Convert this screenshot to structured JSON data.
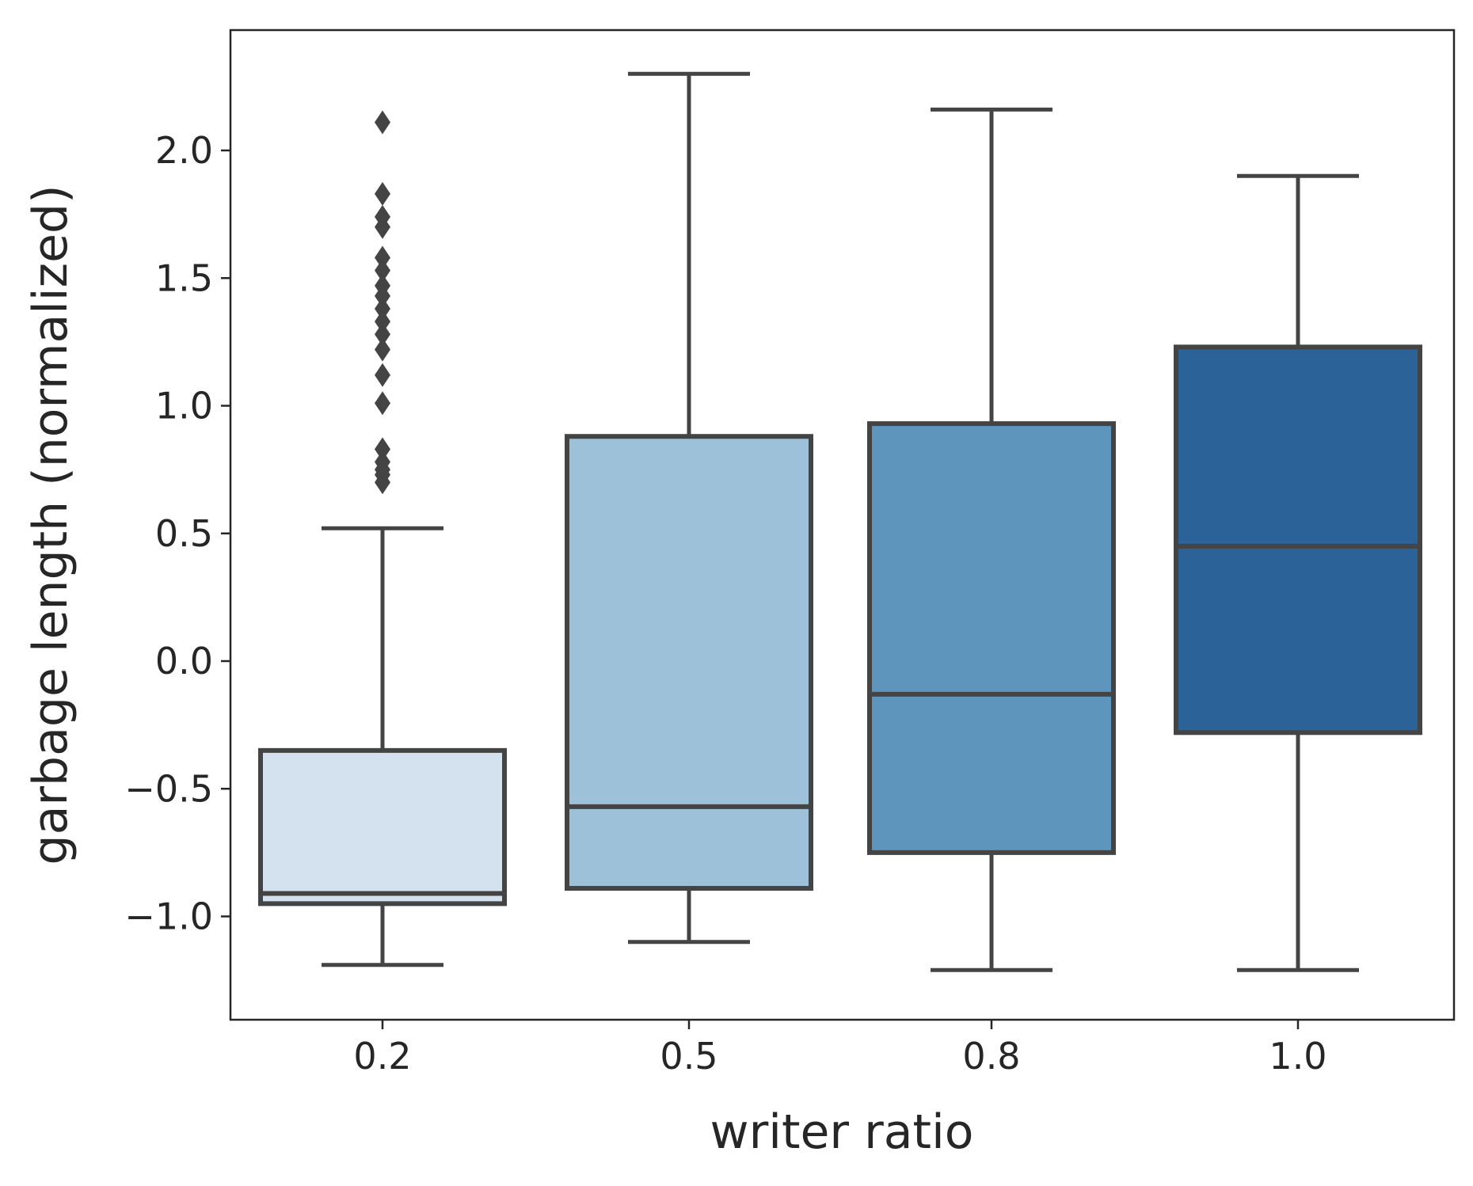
{
  "chart_data": {
    "type": "box",
    "title": "",
    "xlabel": "writer ratio",
    "ylabel": "garbage length (normalized)",
    "categories": [
      "0.2",
      "0.5",
      "0.8",
      "1.0"
    ],
    "ylim": [
      -1.42,
      2.45
    ],
    "yticks": [
      -1.0,
      -0.5,
      0.0,
      0.5,
      1.0,
      1.5,
      2.0
    ],
    "ytick_labels": [
      "−1.0",
      "−0.5",
      "0.0",
      "0.5",
      "1.0",
      "1.5",
      "2.0"
    ],
    "grid": false,
    "boxes": [
      {
        "category": "0.2",
        "whisker_low": -1.19,
        "q1": -0.95,
        "median": -0.91,
        "q3": -0.35,
        "whisker_high": 0.52,
        "color": "#d4e2f0",
        "outliers": [
          0.7,
          0.73,
          0.75,
          0.78,
          0.83,
          1.01,
          1.12,
          1.22,
          1.28,
          1.33,
          1.38,
          1.43,
          1.47,
          1.53,
          1.58,
          1.7,
          1.74,
          1.83,
          2.11
        ]
      },
      {
        "category": "0.5",
        "whisker_low": -1.1,
        "q1": -0.89,
        "median": -0.57,
        "q3": 0.88,
        "whisker_high": 2.3,
        "color": "#9dc1d9",
        "outliers": []
      },
      {
        "category": "0.8",
        "whisker_low": -1.21,
        "q1": -0.75,
        "median": -0.13,
        "q3": 0.93,
        "whisker_high": 2.16,
        "color": "#5d95bc",
        "outliers": []
      },
      {
        "category": "1.0",
        "whisker_low": -1.21,
        "q1": -0.28,
        "median": 0.45,
        "q3": 1.23,
        "whisker_high": 1.9,
        "color": "#2b6298",
        "outliers": []
      }
    ],
    "line_color": "#444444"
  }
}
